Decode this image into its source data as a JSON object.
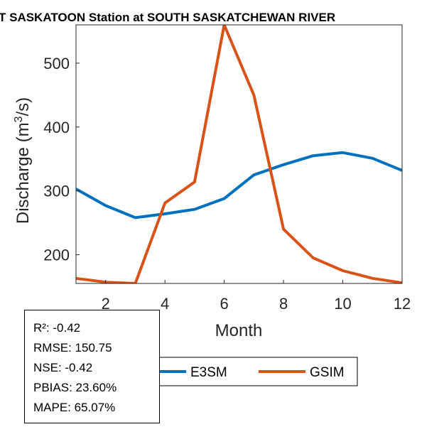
{
  "chart_data": {
    "type": "line",
    "title": "T SASKATOON  Station at  SOUTH SASKATCHEWAN RIVER",
    "xlabel": "Month",
    "ylabel_main": "Discharge (m",
    "ylabel_sup": "3",
    "ylabel_end": "/s)",
    "xlim": [
      1,
      12
    ],
    "ylim": [
      155,
      560
    ],
    "x_ticks": [
      2,
      4,
      6,
      8,
      10,
      12
    ],
    "y_ticks": [
      200,
      300,
      400,
      500
    ],
    "grid": false,
    "x": [
      1,
      2,
      3,
      4,
      5,
      6,
      7,
      8,
      9,
      10,
      11,
      12
    ],
    "series": [
      {
        "name": "E3SM",
        "color": "#0072BD",
        "values": [
          303,
          277,
          258,
          264,
          271,
          288,
          325,
          341,
          355,
          360,
          351,
          332
        ]
      },
      {
        "name": "GSIM",
        "color": "#D95319",
        "values": [
          163,
          157,
          155,
          281,
          314,
          560,
          450,
          240,
          195,
          175,
          163,
          156
        ]
      }
    ],
    "legend_position": "below-right"
  },
  "stats": {
    "r2": "R²: -0.42",
    "rmse": "RMSE: 150.75",
    "nse": "NSE: -0.42",
    "pbias": "PBIAS: 23.60%",
    "mape": "MAPE: 65.07%"
  }
}
